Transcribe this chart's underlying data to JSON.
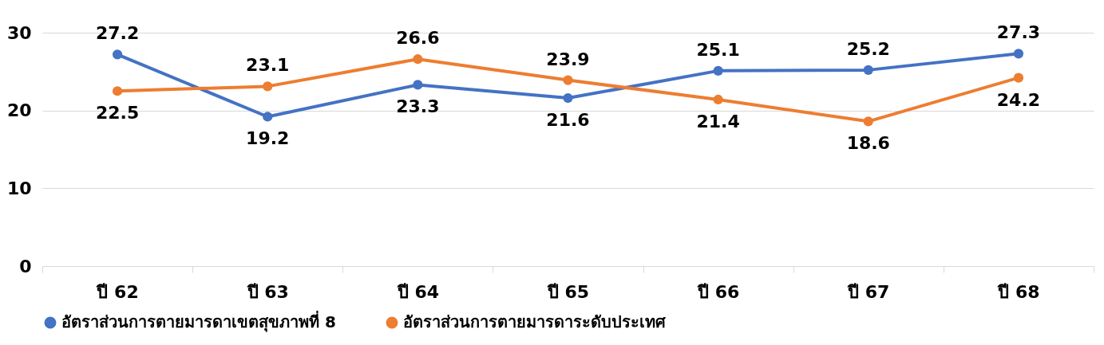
{
  "chart_data": {
    "type": "line",
    "categories": [
      "ปี 62",
      "ปี 63",
      "ปี 64",
      "ปี 65",
      "ปี 66",
      "ปี 67",
      "ปี 68"
    ],
    "series": [
      {
        "name": "อัตราส่วนการตายมารดาเขตสุขภาพที่ 8",
        "color": "#4472c4",
        "values": [
          27.2,
          19.2,
          23.3,
          21.6,
          25.1,
          25.2,
          27.3
        ]
      },
      {
        "name": "อัตราส่วนการตายมารดาระดับประเทศ",
        "color": "#ed7d31",
        "values": [
          22.5,
          23.1,
          26.6,
          23.9,
          21.4,
          18.6,
          24.2
        ]
      }
    ],
    "ylim": [
      0,
      30
    ],
    "yticks": [
      0,
      10,
      20,
      30
    ],
    "grid": "y",
    "legend": "bottom",
    "marker": "circle",
    "line_style": "solid",
    "data_labels": true
  }
}
